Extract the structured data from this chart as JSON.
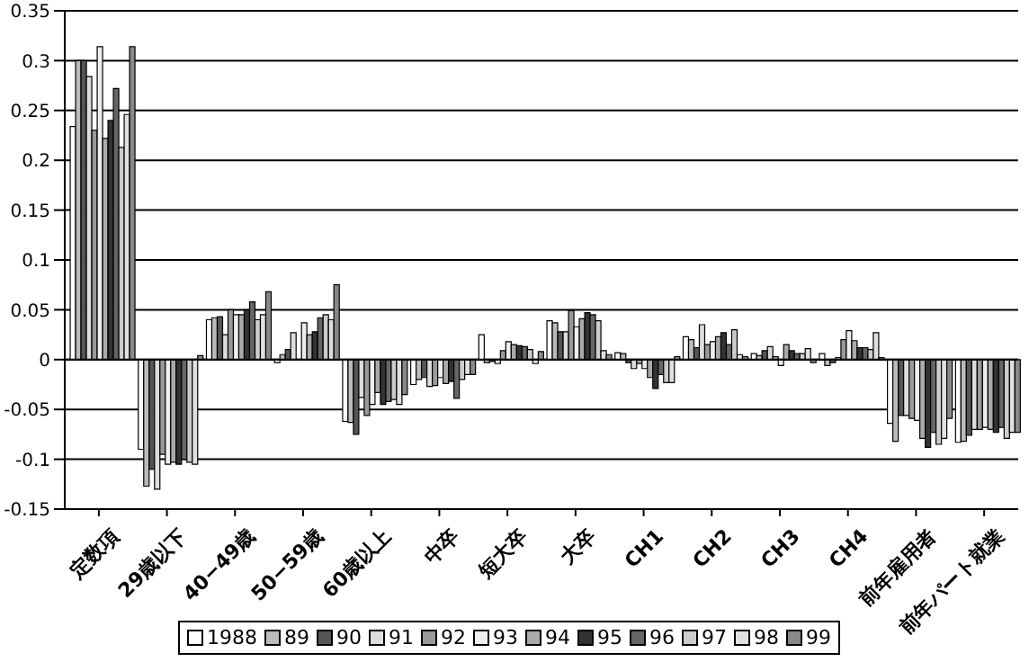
{
  "chart_data": {
    "type": "bar",
    "categories": [
      "定数項",
      "29歳以下",
      "40−49歳",
      "50−59歳",
      "60歳以上",
      "中卒",
      "短大卒",
      "大卒",
      "CH1",
      "CH2",
      "CH3",
      "CH4",
      "前年雇用者",
      "前年パート就業"
    ],
    "series": [
      {
        "name": "1988",
        "color": "#ffffff",
        "values": [
          0.234,
          -0.09,
          0.04,
          -0.003,
          -0.062,
          -0.025,
          0.025,
          0.039,
          0.007,
          0.023,
          0.006,
          0.006,
          -0.064,
          -0.083
        ]
      },
      {
        "name": "89",
        "color": "#bbbbbb",
        "values": [
          0.3,
          -0.127,
          0.042,
          0.005,
          -0.063,
          -0.02,
          -0.003,
          0.037,
          0.006,
          0.02,
          0.004,
          -0.006,
          -0.082,
          -0.082
        ]
      },
      {
        "name": "90",
        "color": "#555555",
        "values": [
          0.3,
          -0.11,
          0.043,
          0.01,
          -0.075,
          -0.018,
          -0.002,
          0.028,
          -0.003,
          0.012,
          0.009,
          -0.003,
          -0.056,
          -0.076
        ]
      },
      {
        "name": "91",
        "color": "#dddddd",
        "values": [
          0.284,
          -0.13,
          0.025,
          0.027,
          -0.038,
          -0.027,
          -0.004,
          0.028,
          -0.009,
          0.035,
          0.013,
          0.002,
          -0.056,
          -0.07
        ]
      },
      {
        "name": "92",
        "color": "#999999",
        "values": [
          0.23,
          -0.095,
          0.05,
          0.0,
          -0.056,
          -0.026,
          0.009,
          0.049,
          -0.004,
          0.015,
          0.003,
          0.02,
          -0.059,
          -0.07
        ]
      },
      {
        "name": "93",
        "color": "#eeeeee",
        "values": [
          0.314,
          -0.105,
          0.045,
          0.037,
          -0.045,
          -0.018,
          0.018,
          0.033,
          -0.009,
          0.018,
          -0.006,
          0.029,
          -0.061,
          -0.068
        ]
      },
      {
        "name": "94",
        "color": "#aaaaaa",
        "values": [
          0.222,
          -0.103,
          0.045,
          0.025,
          -0.033,
          -0.024,
          0.015,
          0.041,
          -0.018,
          0.023,
          0.015,
          0.019,
          -0.079,
          -0.07
        ]
      },
      {
        "name": "95",
        "color": "#333333",
        "values": [
          0.24,
          -0.105,
          0.05,
          0.028,
          -0.045,
          -0.022,
          0.014,
          0.047,
          -0.029,
          0.027,
          0.009,
          0.012,
          -0.088,
          -0.073
        ]
      },
      {
        "name": "96",
        "color": "#666666",
        "values": [
          0.272,
          -0.1,
          0.058,
          0.042,
          -0.042,
          -0.039,
          0.013,
          0.045,
          -0.015,
          0.015,
          0.006,
          0.012,
          -0.073,
          -0.068
        ]
      },
      {
        "name": "97",
        "color": "#cccccc",
        "values": [
          0.213,
          -0.103,
          0.04,
          0.045,
          -0.04,
          -0.02,
          0.01,
          0.039,
          -0.023,
          0.03,
          0.006,
          0.01,
          -0.085,
          -0.079
        ]
      },
      {
        "name": "98",
        "color": "#e0e0e0",
        "values": [
          0.246,
          -0.105,
          0.045,
          0.04,
          -0.045,
          -0.015,
          -0.004,
          0.009,
          -0.023,
          0.005,
          0.011,
          0.027,
          -0.079,
          -0.073
        ]
      },
      {
        "name": "99",
        "color": "#888888",
        "values": [
          0.314,
          0.004,
          0.068,
          0.075,
          -0.035,
          -0.015,
          0.008,
          0.005,
          0.003,
          0.003,
          -0.003,
          0.002,
          -0.059,
          -0.073
        ]
      }
    ],
    "ylim": [
      -0.15,
      0.35
    ],
    "yticks": [
      -0.15,
      -0.1,
      -0.05,
      0,
      0.05,
      0.1,
      0.15,
      0.2,
      0.25,
      0.3,
      0.35
    ],
    "grid": "y",
    "legend": "bottom"
  }
}
